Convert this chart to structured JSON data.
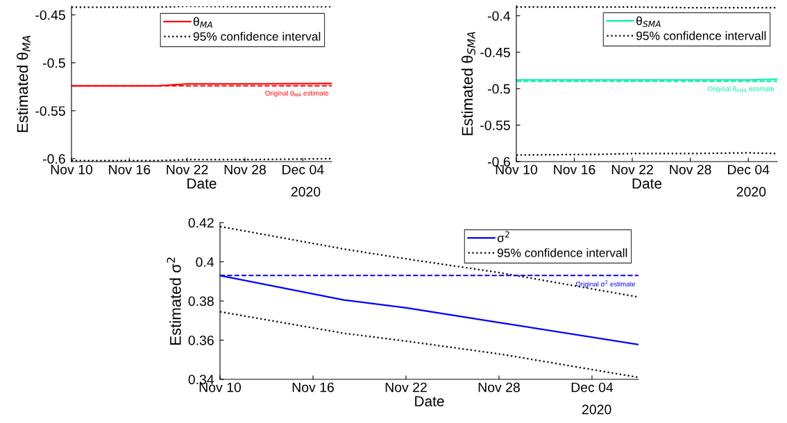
{
  "chart_data": [
    {
      "type": "line",
      "xlabel": "Date",
      "ylabel": "Estimated θ$_{MA}$",
      "xlim": [
        "2020-11-10",
        "2020-12-07"
      ],
      "xticks": [
        {
          "value": "2020-11-10",
          "label": "Nov 10"
        },
        {
          "value": "2020-11-16",
          "label": "Nov 16"
        },
        {
          "value": "2020-11-22",
          "label": "Nov 22"
        },
        {
          "value": "2020-11-28",
          "label": "Nov 28"
        },
        {
          "value": "2020-12-04",
          "label": "Dec 04"
        }
      ],
      "ylim": [
        -0.603,
        -0.441
      ],
      "yticks": [
        {
          "value": -0.6,
          "label": "-0.6"
        },
        {
          "value": -0.55,
          "label": "-0.55"
        },
        {
          "value": -0.5,
          "label": "-0.5"
        },
        {
          "value": -0.45,
          "label": "-0.45"
        }
      ],
      "legend": "top right",
      "annotations": [
        "2020"
      ],
      "x": [
        "2020-11-10",
        "2020-11-19",
        "2020-11-22",
        "2020-11-28",
        "2020-12-07"
      ],
      "series": [
        {
          "name": "θ$_{MA}$",
          "color": "#ff0000",
          "line_style": "solid",
          "values": [
            -0.524,
            -0.524,
            -0.522,
            -0.522,
            -0.5215
          ]
        },
        {
          "name": "95% confidence interval",
          "color": "#000000",
          "line_style": "dotted",
          "values": [
            -0.442,
            -0.442,
            -0.441,
            -0.4415,
            -0.4415
          ]
        },
        {
          "color": "#000000",
          "line_style": "dotted",
          "values": [
            -0.602,
            -0.602,
            -0.601,
            -0.601,
            -0.6
          ]
        }
      ],
      "ref_lines": [
        {
          "axis": "y",
          "value": -0.524,
          "label": "Original θ$_{MA}$ estimate",
          "color": "#ff0000",
          "line_style": "dashed"
        }
      ]
    },
    {
      "type": "line",
      "xlabel": "Date",
      "ylabel": "Estimated θ$_{SMA}$",
      "xlim": [
        "2020-11-10",
        "2020-12-07"
      ],
      "xticks": [
        {
          "value": "2020-11-10",
          "label": "Nov 10"
        },
        {
          "value": "2020-11-16",
          "label": "Nov 16"
        },
        {
          "value": "2020-11-22",
          "label": "Nov 22"
        },
        {
          "value": "2020-11-28",
          "label": "Nov 28"
        },
        {
          "value": "2020-12-04",
          "label": "Dec 04"
        }
      ],
      "ylim": [
        -0.6,
        -0.386
      ],
      "yticks": [
        {
          "value": -0.6,
          "label": "-0.6"
        },
        {
          "value": -0.55,
          "label": "-0.55"
        },
        {
          "value": -0.5,
          "label": "-0.5"
        },
        {
          "value": -0.45,
          "label": "-0.45"
        },
        {
          "value": -0.4,
          "label": "-0.4"
        }
      ],
      "legend": "top right",
      "annotations": [
        "2020"
      ],
      "x": [
        "2020-11-10",
        "2020-11-19",
        "2020-11-22",
        "2020-11-28",
        "2020-12-04",
        "2020-12-07"
      ],
      "series": [
        {
          "name": "θ$_{SMA}$",
          "color": "#00f0b0",
          "line_style": "solid",
          "values": [
            -0.488,
            -0.488,
            -0.488,
            -0.488,
            -0.488,
            -0.487
          ]
        },
        {
          "name": "95% confidence intervall",
          "color": "#000000",
          "line_style": "dotted",
          "values": [
            -0.388,
            -0.388,
            -0.388,
            -0.389,
            -0.389,
            -0.389
          ]
        },
        {
          "color": "#000000",
          "line_style": "dotted",
          "values": [
            -0.591,
            -0.59,
            -0.589,
            -0.589,
            -0.588,
            -0.589
          ]
        }
      ],
      "ref_lines": [
        {
          "axis": "y",
          "value": -0.49,
          "label": "Original θ$_{SMA}$ estimate",
          "color": "#00f0b0",
          "line_style": "dashed"
        }
      ]
    },
    {
      "type": "line",
      "xlabel": "Date",
      "ylabel": "Estimated σ$^{2}$",
      "xlim": [
        "2020-11-10",
        "2020-12-07"
      ],
      "xticks": [
        {
          "value": "2020-11-10",
          "label": "Nov 10"
        },
        {
          "value": "2020-11-16",
          "label": "Nov 16"
        },
        {
          "value": "2020-11-22",
          "label": "Nov 22"
        },
        {
          "value": "2020-11-28",
          "label": "Nov 28"
        },
        {
          "value": "2020-12-04",
          "label": "Dec 04"
        }
      ],
      "ylim": [
        0.34,
        0.42
      ],
      "yticks": [
        0.34,
        0.36,
        0.38,
        0.4,
        0.42
      ],
      "legend": "top right",
      "annotations": [
        "2020"
      ],
      "x": [
        "2020-11-10",
        "2020-11-18",
        "2020-11-22",
        "2020-11-28",
        "2020-12-07"
      ],
      "series": [
        {
          "name": "σ$^{2}$",
          "color": "#0000ff",
          "line_style": "solid",
          "values": [
            0.393,
            0.3805,
            0.3765,
            0.369,
            0.3577
          ]
        },
        {
          "name": "95% confidence intervall",
          "color": "#000000",
          "line_style": "dotted",
          "values": [
            0.418,
            0.4065,
            0.4015,
            0.3945,
            0.382
          ]
        },
        {
          "color": "#000000",
          "line_style": "dotted",
          "values": [
            0.3745,
            0.3635,
            0.3595,
            0.353,
            0.341
          ]
        }
      ],
      "ref_lines": [
        {
          "axis": "y",
          "value": 0.393,
          "label": "Original σ$^{2}$ estimate",
          "color": "#0000ff",
          "line_style": "dashed"
        }
      ]
    }
  ]
}
